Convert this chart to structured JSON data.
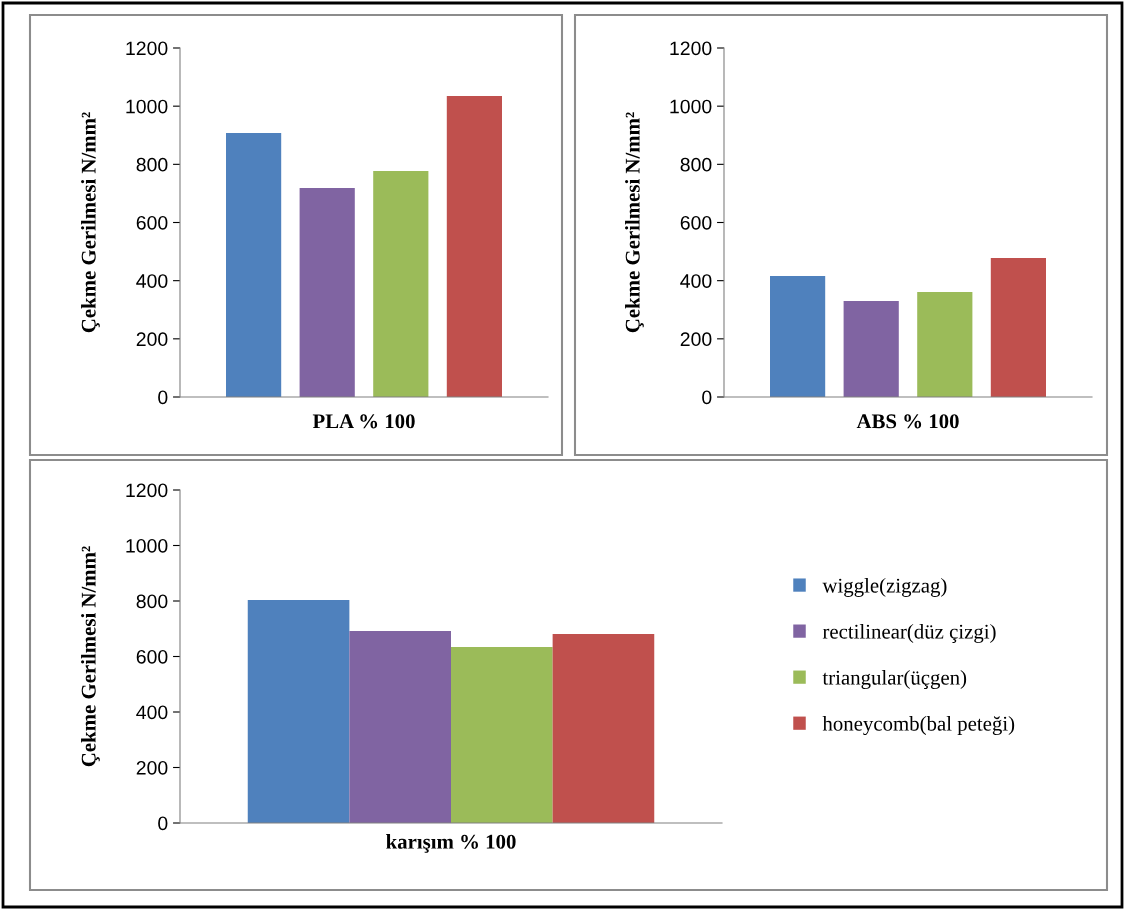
{
  "chart_data": [
    {
      "type": "bar",
      "xlabel": "PLA % 100",
      "ylabel": "Çekme Gerilmesi N/mm²",
      "categories": [
        null,
        null,
        null,
        null
      ],
      "values": [
        908,
        719,
        777,
        1035
      ],
      "colors": [
        "#4f81bd",
        "#8064a2",
        "#9bbb59",
        "#c0504d"
      ],
      "ylim": [
        0,
        1200
      ],
      "yticks": [
        0,
        200,
        400,
        600,
        800,
        1000,
        1200
      ]
    },
    {
      "type": "bar",
      "xlabel": "ABS % 100",
      "ylabel": "Çekme Gerilmesi N/mm²",
      "categories": [
        null,
        null,
        null,
        null
      ],
      "values": [
        416,
        330,
        361,
        478
      ],
      "colors": [
        "#4f81bd",
        "#8064a2",
        "#9bbb59",
        "#c0504d"
      ],
      "ylim": [
        0,
        1200
      ],
      "yticks": [
        0,
        200,
        400,
        600,
        800,
        1000,
        1200
      ]
    },
    {
      "type": "bar",
      "ylabel": "Çekme Gerilmesi N/mm²",
      "categories": [
        "karışım % 100"
      ],
      "ylim": [
        0,
        1200
      ],
      "yticks": [
        0,
        200,
        400,
        600,
        800,
        1000,
        1200
      ],
      "grid": false,
      "legend": "right",
      "series": [
        {
          "name": "wiggle(zigzag)",
          "color": "#4f81bd",
          "values": [
            804
          ]
        },
        {
          "name": "rectilinear(düz çizgi)",
          "color": "#8064a2",
          "values": [
            692
          ]
        },
        {
          "name": "triangular(üçgen)",
          "color": "#9bbb59",
          "values": [
            634
          ]
        },
        {
          "name": "honeycomb(bal peteği)",
          "color": "#c0504d",
          "values": [
            681
          ]
        }
      ]
    }
  ]
}
